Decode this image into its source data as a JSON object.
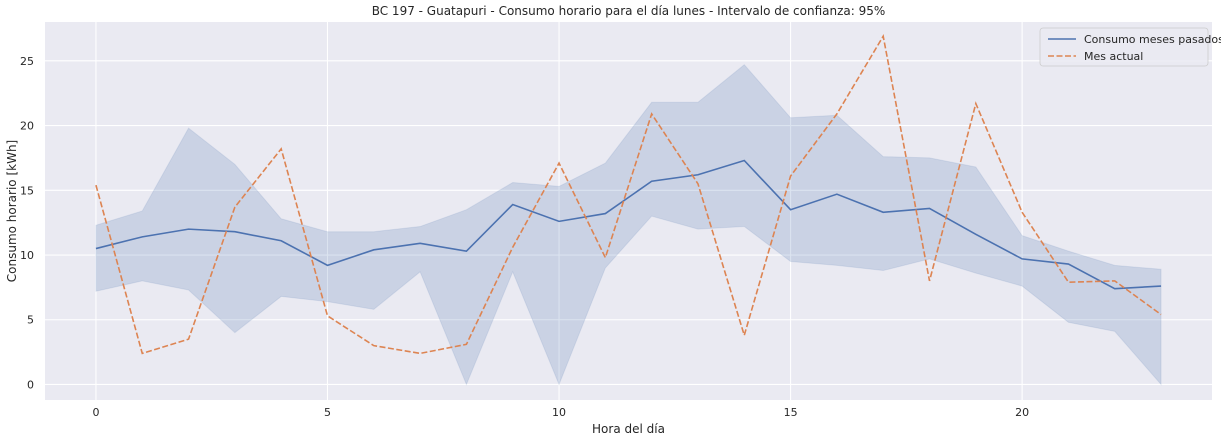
{
  "chart_data": {
    "type": "line",
    "title": "BC 197 - Guatapuri - Consumo horario para el día lunes - Intervalo de confianza: 95%",
    "xlabel": "Hora del día",
    "ylabel": "Consumo horario [kWh]",
    "xlim": [
      -1.1,
      24.1
    ],
    "ylim": [
      -1.2,
      28
    ],
    "xticks": [
      0,
      5,
      10,
      15,
      20
    ],
    "yticks": [
      0,
      5,
      10,
      15,
      20,
      25
    ],
    "grid": true,
    "legend_position": "top-right",
    "x": [
      0,
      1,
      2,
      3,
      4,
      5,
      6,
      7,
      8,
      9,
      10,
      11,
      12,
      13,
      14,
      15,
      16,
      17,
      18,
      19,
      20,
      21,
      22,
      23
    ],
    "series": [
      {
        "name": "Consumo meses pasados",
        "color": "#4c72b0",
        "style": "solid",
        "values": [
          10.5,
          11.4,
          12.0,
          11.8,
          11.1,
          9.2,
          10.4,
          10.9,
          10.3,
          13.9,
          12.6,
          13.2,
          15.7,
          16.2,
          17.3,
          13.5,
          14.7,
          13.3,
          13.6,
          11.6,
          9.7,
          9.3,
          7.4,
          7.6
        ],
        "ci_lower": [
          7.2,
          8.0,
          7.3,
          4.0,
          6.8,
          6.4,
          5.8,
          8.7,
          0.0,
          8.7,
          0.0,
          9.0,
          13.0,
          12.0,
          12.2,
          9.5,
          9.2,
          8.8,
          9.7,
          8.6,
          7.6,
          4.8,
          4.1,
          0.0
        ],
        "ci_upper": [
          12.3,
          13.4,
          19.8,
          17.0,
          12.8,
          11.8,
          11.8,
          12.2,
          13.5,
          15.6,
          15.3,
          17.1,
          21.8,
          21.8,
          24.7,
          20.6,
          20.8,
          17.6,
          17.5,
          16.8,
          11.5,
          10.3,
          9.2,
          8.9
        ],
        "ci_color": "#4c72b0"
      },
      {
        "name": "Mes actual",
        "color": "#dd8452",
        "style": "dashed",
        "values": [
          15.4,
          2.4,
          3.5,
          13.7,
          18.2,
          5.3,
          3.0,
          2.4,
          3.1,
          10.6,
          17.1,
          9.8,
          20.9,
          15.5,
          3.8,
          16.1,
          20.9,
          26.9,
          8.0,
          21.7,
          13.3,
          7.9,
          8.0,
          5.4
        ]
      }
    ]
  }
}
